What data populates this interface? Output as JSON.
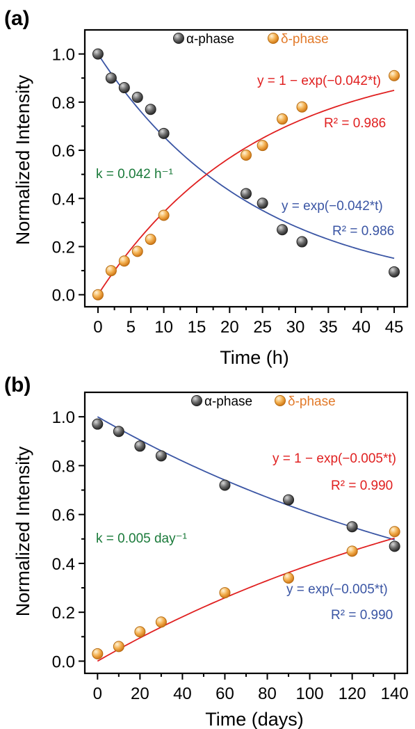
{
  "chart_data": [
    {
      "type": "scatter",
      "panel_label": "(a)",
      "xlabel": "Time (h)",
      "ylabel": "Normalized Intensity",
      "xlim": [
        -2,
        47
      ],
      "ylim": [
        -0.05,
        1.1
      ],
      "xticks": [
        0,
        5,
        10,
        15,
        20,
        25,
        30,
        35,
        40,
        45
      ],
      "yticks": [
        0.0,
        0.2,
        0.4,
        0.6,
        0.8,
        1.0
      ],
      "ytick_labels": [
        "0.0",
        "0.2",
        "0.4",
        "0.6",
        "0.8",
        "1.0"
      ],
      "legend": {
        "alpha_label": "α-phase",
        "delta_label": "δ-phase",
        "placement": "top-center"
      },
      "series": [
        {
          "name": "α-phase",
          "color": "#555555",
          "x": [
            0,
            2,
            4,
            6,
            8,
            10,
            22.5,
            25,
            28,
            31,
            45
          ],
          "y": [
            1.0,
            0.9,
            0.86,
            0.82,
            0.77,
            0.67,
            0.42,
            0.38,
            0.27,
            0.22,
            0.095
          ]
        },
        {
          "name": "δ-phase",
          "color": "#f0a040",
          "x": [
            0,
            2,
            4,
            6,
            8,
            10,
            22.5,
            25,
            28,
            31,
            45
          ],
          "y": [
            0.0,
            0.1,
            0.14,
            0.18,
            0.23,
            0.33,
            0.58,
            0.62,
            0.73,
            0.78,
            0.91
          ]
        }
      ],
      "fits": [
        {
          "kind": "decay",
          "k": 0.042,
          "color": "#3a55a4",
          "x_range": [
            0,
            45
          ]
        },
        {
          "kind": "growth",
          "k": 0.042,
          "color": "#e02020",
          "x_range": [
            0,
            45
          ]
        }
      ],
      "annotations": {
        "red_eq": "y = 1 − exp(−0.042*t)",
        "red_r2": "R² = 0.986",
        "blue_eq": "y = exp(−0.042*t)",
        "blue_r2": "R² = 0.986",
        "k_label": "k = 0.042 h⁻¹"
      },
      "colors": {
        "red": "#e02020",
        "blue": "#3a55a4",
        "green": "#1a7a3a"
      }
    },
    {
      "type": "scatter",
      "panel_label": "(b)",
      "xlabel": "Time (days)",
      "ylabel": "Normalized Intensity",
      "xlim": [
        -6,
        146
      ],
      "ylim": [
        -0.05,
        1.1
      ],
      "xticks": [
        0,
        20,
        40,
        60,
        80,
        100,
        120,
        140
      ],
      "yticks": [
        0.0,
        0.2,
        0.4,
        0.6,
        0.8,
        1.0
      ],
      "ytick_labels": [
        "0.0",
        "0.2",
        "0.4",
        "0.6",
        "0.8",
        "1.0"
      ],
      "legend": {
        "alpha_label": "α-phase",
        "delta_label": "δ-phase",
        "placement": "top-center"
      },
      "series": [
        {
          "name": "α-phase",
          "color": "#555555",
          "x": [
            0,
            10,
            20,
            30,
            60,
            90,
            120,
            140
          ],
          "y": [
            0.97,
            0.94,
            0.88,
            0.84,
            0.72,
            0.66,
            0.55,
            0.47
          ]
        },
        {
          "name": "δ-phase",
          "color": "#f0a040",
          "x": [
            0,
            10,
            20,
            30,
            60,
            90,
            120,
            140
          ],
          "y": [
            0.03,
            0.06,
            0.12,
            0.16,
            0.28,
            0.34,
            0.45,
            0.53
          ]
        }
      ],
      "fits": [
        {
          "kind": "decay",
          "k": 0.005,
          "color": "#3a55a4",
          "x_range": [
            0,
            140
          ]
        },
        {
          "kind": "growth",
          "k": 0.005,
          "color": "#e02020",
          "x_range": [
            0,
            140
          ]
        }
      ],
      "annotations": {
        "red_eq": "y = 1 − exp(−0.005*t)",
        "red_r2": "R² = 0.990",
        "blue_eq": "y = exp(−0.005*t)",
        "blue_r2": "R² = 0.990",
        "k_label": "k = 0.005 day⁻¹"
      },
      "colors": {
        "red": "#e02020",
        "blue": "#3a55a4",
        "green": "#1a7a3a"
      }
    }
  ]
}
